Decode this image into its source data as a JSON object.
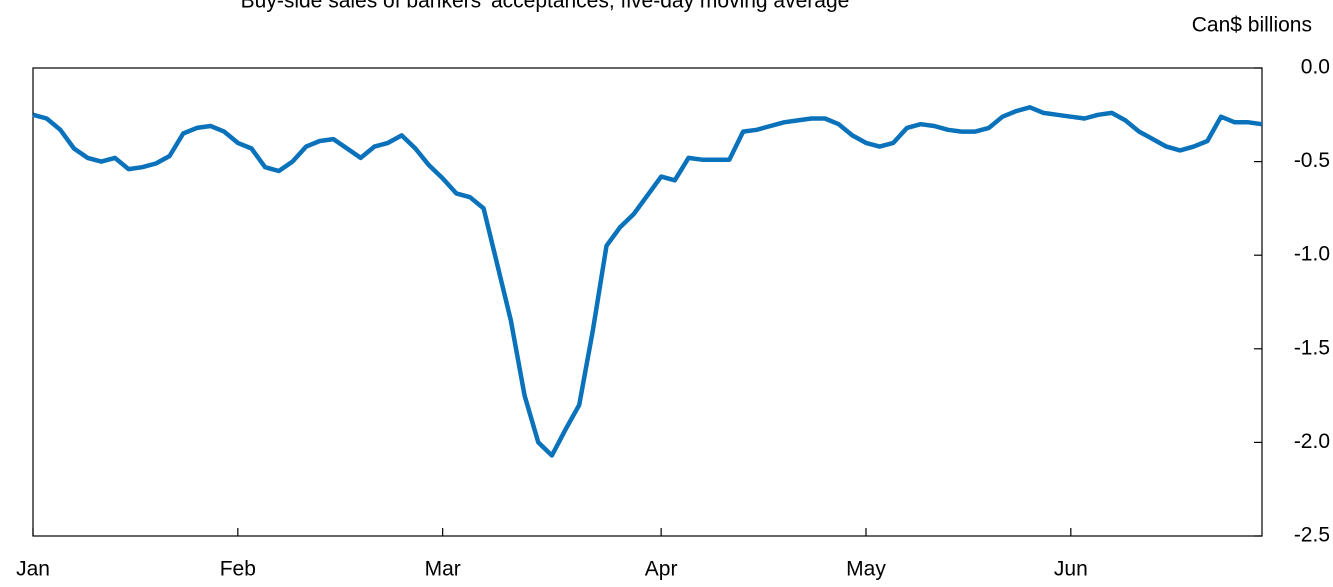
{
  "chart_data": {
    "type": "line",
    "title": "Buy-side sales of bankers' acceptances, five-day moving average",
    "y_axis_label": "Can$ billions",
    "categories": [
      "Jan",
      null,
      null,
      null,
      null,
      null,
      null,
      null,
      null,
      null,
      null,
      null,
      null,
      null,
      null,
      "Feb",
      null,
      null,
      null,
      null,
      null,
      null,
      null,
      null,
      null,
      null,
      null,
      null,
      null,
      null,
      "Mar",
      null,
      null,
      null,
      null,
      null,
      null,
      null,
      null,
      null,
      null,
      null,
      null,
      null,
      null,
      null,
      "Apr",
      null,
      null,
      null,
      null,
      null,
      null,
      null,
      null,
      null,
      null,
      null,
      null,
      null,
      null,
      "May",
      null,
      null,
      null,
      null,
      null,
      null,
      null,
      null,
      null,
      null,
      null,
      null,
      null,
      null,
      "Jun",
      null,
      null,
      null,
      null,
      null,
      null,
      null,
      null,
      null,
      null,
      null,
      null,
      null,
      null
    ],
    "series": [
      {
        "name": "Buy-side sales",
        "color": "#0a72bb",
        "values": [
          -0.25,
          -0.27,
          -0.33,
          -0.43,
          -0.48,
          -0.5,
          -0.48,
          -0.54,
          -0.53,
          -0.51,
          -0.47,
          -0.35,
          -0.32,
          -0.31,
          -0.34,
          -0.4,
          -0.43,
          -0.53,
          -0.55,
          -0.5,
          -0.42,
          -0.39,
          -0.38,
          -0.43,
          -0.48,
          -0.42,
          -0.4,
          -0.36,
          -0.43,
          -0.52,
          -0.59,
          -0.67,
          -0.69,
          -0.75,
          -1.05,
          -1.35,
          -1.75,
          -2.0,
          -2.07,
          -1.93,
          -1.8,
          -1.4,
          -0.95,
          -0.85,
          -0.78,
          -0.68,
          -0.58,
          -0.6,
          -0.48,
          -0.49,
          -0.49,
          -0.49,
          -0.34,
          -0.33,
          -0.31,
          -0.29,
          -0.28,
          -0.27,
          -0.27,
          -0.3,
          -0.36,
          -0.4,
          -0.42,
          -0.4,
          -0.32,
          -0.3,
          -0.31,
          -0.33,
          -0.34,
          -0.34,
          -0.32,
          -0.26,
          -0.23,
          -0.21,
          -0.24,
          -0.25,
          -0.26,
          -0.27,
          -0.25,
          -0.24,
          -0.28,
          -0.34,
          -0.38,
          -0.42,
          -0.44,
          -0.42,
          -0.39,
          -0.26,
          -0.29,
          -0.29,
          -0.3
        ]
      }
    ],
    "ylim": [
      -2.5,
      0
    ],
    "yticks": [
      {
        "value": 0,
        "label": "0.0"
      },
      {
        "value": -0.5,
        "label": "-0.5"
      },
      {
        "value": -1,
        "label": "-1.0"
      },
      {
        "value": -1.5,
        "label": "-1.5"
      },
      {
        "value": -2,
        "label": "-2.0"
      },
      {
        "value": -2.5,
        "label": "-2.5"
      }
    ],
    "y_axis_side": "right",
    "grid": false
  }
}
